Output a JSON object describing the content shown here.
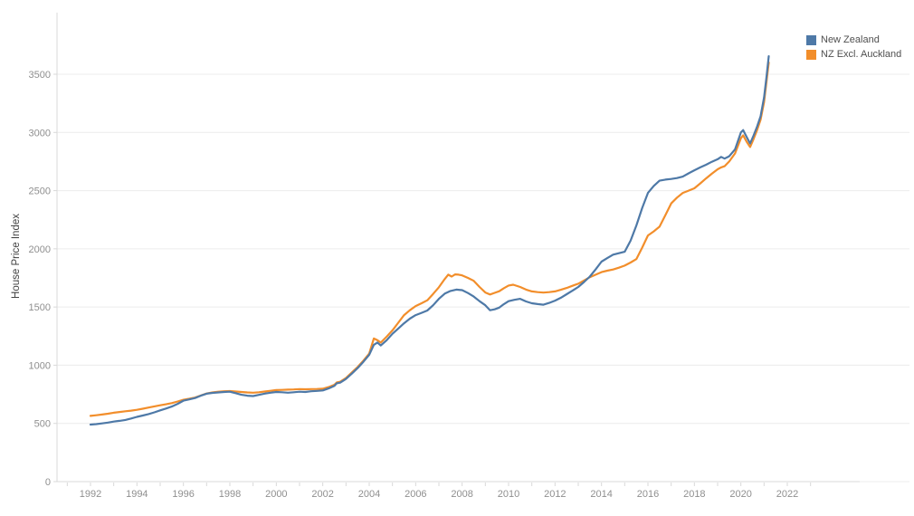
{
  "accent_colors": {
    "blue": "#4e79a7",
    "orange": "#f28e2b",
    "gridline": "#ececec",
    "axis_line": "#d9d9d9",
    "tick_text": "#8f8f8f",
    "axis_title_text": "#424242",
    "legend_text": "#4f4f4f"
  },
  "legend": {
    "items": [
      {
        "id": "new-zealand",
        "label": "New Zealand",
        "color": "#4e79a7"
      },
      {
        "id": "nz-excl-auckland",
        "label": "NZ Excl. Auckland",
        "color": "#f28e2b"
      }
    ]
  },
  "chart_data": {
    "type": "line",
    "title": "",
    "xlabel": "",
    "ylabel": "House Price Index",
    "grid": true,
    "legend_position": "top-right",
    "ylim": [
      0,
      3650
    ],
    "xlim": [
      1990.5,
      2027
    ],
    "yticks": [
      0,
      500,
      1000,
      1500,
      2000,
      2500,
      3000,
      3500
    ],
    "x_ticks_labeled": [
      1992,
      1994,
      1996,
      1998,
      2000,
      2002,
      2004,
      2006,
      2008,
      2010,
      2012,
      2014,
      2016,
      2018,
      2020,
      2022
    ],
    "x_minor_ticks": [
      1991,
      1992,
      1993,
      1994,
      1995,
      1996,
      1997,
      1998,
      1999,
      2000,
      2001,
      2002,
      2003,
      2004,
      2005,
      2006,
      2007,
      2008,
      2009,
      2010,
      2011,
      2012,
      2013,
      2014,
      2015,
      2016,
      2017,
      2018,
      2019,
      2020,
      2021,
      2022,
      2023
    ],
    "series": [
      {
        "name": "NZ Excl. Auckland",
        "color": "#f28e2b",
        "points": [
          [
            1992,
            565
          ],
          [
            1992.25,
            570
          ],
          [
            1992.5,
            576
          ],
          [
            1992.75,
            583
          ],
          [
            1993,
            592
          ],
          [
            1993.25,
            598
          ],
          [
            1993.5,
            604
          ],
          [
            1993.75,
            610
          ],
          [
            1994,
            617
          ],
          [
            1994.25,
            626
          ],
          [
            1994.5,
            636
          ],
          [
            1994.75,
            646
          ],
          [
            1995,
            656
          ],
          [
            1995.25,
            664
          ],
          [
            1995.5,
            674
          ],
          [
            1995.75,
            688
          ],
          [
            1996,
            703
          ],
          [
            1996.25,
            712
          ],
          [
            1996.5,
            722
          ],
          [
            1996.75,
            740
          ],
          [
            1997,
            757
          ],
          [
            1997.25,
            766
          ],
          [
            1997.5,
            772
          ],
          [
            1997.75,
            776
          ],
          [
            1998,
            778
          ],
          [
            1998.25,
            774
          ],
          [
            1998.5,
            770
          ],
          [
            1998.75,
            766
          ],
          [
            1999,
            764
          ],
          [
            1999.25,
            768
          ],
          [
            1999.5,
            774
          ],
          [
            1999.75,
            780
          ],
          [
            2000,
            786
          ],
          [
            2000.25,
            788
          ],
          [
            2000.5,
            790
          ],
          [
            2000.75,
            792
          ],
          [
            2001,
            795
          ],
          [
            2001.25,
            793
          ],
          [
            2001.5,
            795
          ],
          [
            2001.75,
            796
          ],
          [
            2002,
            798
          ],
          [
            2002.25,
            812
          ],
          [
            2002.5,
            832
          ],
          [
            2002.6,
            852
          ],
          [
            2002.75,
            858
          ],
          [
            2003,
            890
          ],
          [
            2003.25,
            938
          ],
          [
            2003.5,
            985
          ],
          [
            2003.75,
            1040
          ],
          [
            2004,
            1100
          ],
          [
            2004.2,
            1230
          ],
          [
            2004.35,
            1215
          ],
          [
            2004.5,
            1195
          ],
          [
            2004.75,
            1245
          ],
          [
            2005,
            1300
          ],
          [
            2005.25,
            1365
          ],
          [
            2005.5,
            1430
          ],
          [
            2005.75,
            1472
          ],
          [
            2006,
            1508
          ],
          [
            2006.25,
            1532
          ],
          [
            2006.5,
            1558
          ],
          [
            2006.75,
            1612
          ],
          [
            2007,
            1670
          ],
          [
            2007.25,
            1740
          ],
          [
            2007.4,
            1778
          ],
          [
            2007.55,
            1762
          ],
          [
            2007.7,
            1780
          ],
          [
            2007.85,
            1778
          ],
          [
            2008,
            1772
          ],
          [
            2008.25,
            1750
          ],
          [
            2008.5,
            1725
          ],
          [
            2008.75,
            1672
          ],
          [
            2009,
            1625
          ],
          [
            2009.2,
            1608
          ],
          [
            2009.4,
            1622
          ],
          [
            2009.6,
            1636
          ],
          [
            2009.8,
            1662
          ],
          [
            2010,
            1685
          ],
          [
            2010.2,
            1692
          ],
          [
            2010.5,
            1672
          ],
          [
            2010.75,
            1650
          ],
          [
            2011,
            1634
          ],
          [
            2011.25,
            1628
          ],
          [
            2011.5,
            1624
          ],
          [
            2011.75,
            1628
          ],
          [
            2012,
            1634
          ],
          [
            2012.25,
            1648
          ],
          [
            2012.5,
            1664
          ],
          [
            2012.75,
            1682
          ],
          [
            2013,
            1700
          ],
          [
            2013.25,
            1728
          ],
          [
            2013.5,
            1756
          ],
          [
            2013.75,
            1778
          ],
          [
            2014,
            1800
          ],
          [
            2014.25,
            1812
          ],
          [
            2014.5,
            1822
          ],
          [
            2014.75,
            1838
          ],
          [
            2015,
            1856
          ],
          [
            2015.25,
            1882
          ],
          [
            2015.5,
            1912
          ],
          [
            2015.75,
            2010
          ],
          [
            2016,
            2115
          ],
          [
            2016.25,
            2150
          ],
          [
            2016.5,
            2190
          ],
          [
            2016.75,
            2290
          ],
          [
            2017,
            2390
          ],
          [
            2017.25,
            2440
          ],
          [
            2017.5,
            2480
          ],
          [
            2017.75,
            2500
          ],
          [
            2018,
            2520
          ],
          [
            2018.25,
            2562
          ],
          [
            2018.5,
            2605
          ],
          [
            2018.75,
            2645
          ],
          [
            2019,
            2683
          ],
          [
            2019.15,
            2700
          ],
          [
            2019.3,
            2710
          ],
          [
            2019.5,
            2750
          ],
          [
            2019.75,
            2820
          ],
          [
            2020,
            2950
          ],
          [
            2020.1,
            2975
          ],
          [
            2020.25,
            2920
          ],
          [
            2020.4,
            2875
          ],
          [
            2020.55,
            2945
          ],
          [
            2020.7,
            3020
          ],
          [
            2020.85,
            3110
          ],
          [
            2021,
            3260
          ],
          [
            2021.1,
            3430
          ],
          [
            2021.2,
            3600
          ]
        ]
      },
      {
        "name": "New Zealand",
        "color": "#4e79a7",
        "points": [
          [
            1992,
            490
          ],
          [
            1992.25,
            494
          ],
          [
            1992.5,
            500
          ],
          [
            1992.75,
            507
          ],
          [
            1993,
            516
          ],
          [
            1993.25,
            522
          ],
          [
            1993.5,
            530
          ],
          [
            1993.75,
            542
          ],
          [
            1994,
            556
          ],
          [
            1994.25,
            568
          ],
          [
            1994.5,
            580
          ],
          [
            1994.75,
            595
          ],
          [
            1995,
            612
          ],
          [
            1995.25,
            628
          ],
          [
            1995.5,
            645
          ],
          [
            1995.75,
            668
          ],
          [
            1996,
            695
          ],
          [
            1996.25,
            706
          ],
          [
            1996.5,
            718
          ],
          [
            1996.75,
            738
          ],
          [
            1997,
            755
          ],
          [
            1997.25,
            762
          ],
          [
            1997.5,
            766
          ],
          [
            1997.75,
            770
          ],
          [
            1998,
            772
          ],
          [
            1998.25,
            760
          ],
          [
            1998.5,
            746
          ],
          [
            1998.75,
            738
          ],
          [
            1999,
            735
          ],
          [
            1999.25,
            745
          ],
          [
            1999.5,
            756
          ],
          [
            1999.75,
            764
          ],
          [
            2000,
            770
          ],
          [
            2000.25,
            768
          ],
          [
            2000.5,
            764
          ],
          [
            2000.75,
            768
          ],
          [
            2001,
            772
          ],
          [
            2001.25,
            770
          ],
          [
            2001.5,
            776
          ],
          [
            2001.75,
            779
          ],
          [
            2002,
            783
          ],
          [
            2002.25,
            800
          ],
          [
            2002.5,
            822
          ],
          [
            2002.6,
            845
          ],
          [
            2002.75,
            850
          ],
          [
            2003,
            882
          ],
          [
            2003.25,
            928
          ],
          [
            2003.5,
            975
          ],
          [
            2003.75,
            1030
          ],
          [
            2004,
            1090
          ],
          [
            2004.2,
            1175
          ],
          [
            2004.35,
            1195
          ],
          [
            2004.5,
            1170
          ],
          [
            2004.75,
            1215
          ],
          [
            2005,
            1270
          ],
          [
            2005.25,
            1315
          ],
          [
            2005.5,
            1360
          ],
          [
            2005.75,
            1400
          ],
          [
            2006,
            1430
          ],
          [
            2006.25,
            1450
          ],
          [
            2006.5,
            1470
          ],
          [
            2006.75,
            1515
          ],
          [
            2007,
            1570
          ],
          [
            2007.25,
            1615
          ],
          [
            2007.5,
            1638
          ],
          [
            2007.75,
            1650
          ],
          [
            2008,
            1645
          ],
          [
            2008.25,
            1620
          ],
          [
            2008.5,
            1590
          ],
          [
            2008.75,
            1550
          ],
          [
            2009,
            1515
          ],
          [
            2009.2,
            1472
          ],
          [
            2009.4,
            1480
          ],
          [
            2009.6,
            1495
          ],
          [
            2009.8,
            1525
          ],
          [
            2010,
            1550
          ],
          [
            2010.25,
            1562
          ],
          [
            2010.5,
            1570
          ],
          [
            2010.75,
            1548
          ],
          [
            2011,
            1532
          ],
          [
            2011.25,
            1525
          ],
          [
            2011.5,
            1520
          ],
          [
            2011.75,
            1535
          ],
          [
            2012,
            1555
          ],
          [
            2012.25,
            1580
          ],
          [
            2012.5,
            1610
          ],
          [
            2012.75,
            1640
          ],
          [
            2013,
            1672
          ],
          [
            2013.25,
            1715
          ],
          [
            2013.5,
            1762
          ],
          [
            2013.75,
            1825
          ],
          [
            2014,
            1890
          ],
          [
            2014.25,
            1920
          ],
          [
            2014.5,
            1950
          ],
          [
            2014.75,
            1962
          ],
          [
            2015,
            1975
          ],
          [
            2015.25,
            2070
          ],
          [
            2015.5,
            2200
          ],
          [
            2015.75,
            2350
          ],
          [
            2016,
            2480
          ],
          [
            2016.25,
            2540
          ],
          [
            2016.5,
            2585
          ],
          [
            2016.75,
            2595
          ],
          [
            2017,
            2600
          ],
          [
            2017.25,
            2608
          ],
          [
            2017.5,
            2620
          ],
          [
            2017.75,
            2648
          ],
          [
            2018,
            2675
          ],
          [
            2018.25,
            2700
          ],
          [
            2018.5,
            2722
          ],
          [
            2018.75,
            2748
          ],
          [
            2019,
            2770
          ],
          [
            2019.15,
            2790
          ],
          [
            2019.3,
            2775
          ],
          [
            2019.5,
            2795
          ],
          [
            2019.75,
            2855
          ],
          [
            2020,
            3000
          ],
          [
            2020.1,
            3020
          ],
          [
            2020.25,
            2960
          ],
          [
            2020.4,
            2905
          ],
          [
            2020.55,
            2975
          ],
          [
            2020.7,
            3050
          ],
          [
            2020.85,
            3140
          ],
          [
            2021,
            3300
          ],
          [
            2021.1,
            3470
          ],
          [
            2021.2,
            3655
          ]
        ]
      }
    ]
  }
}
